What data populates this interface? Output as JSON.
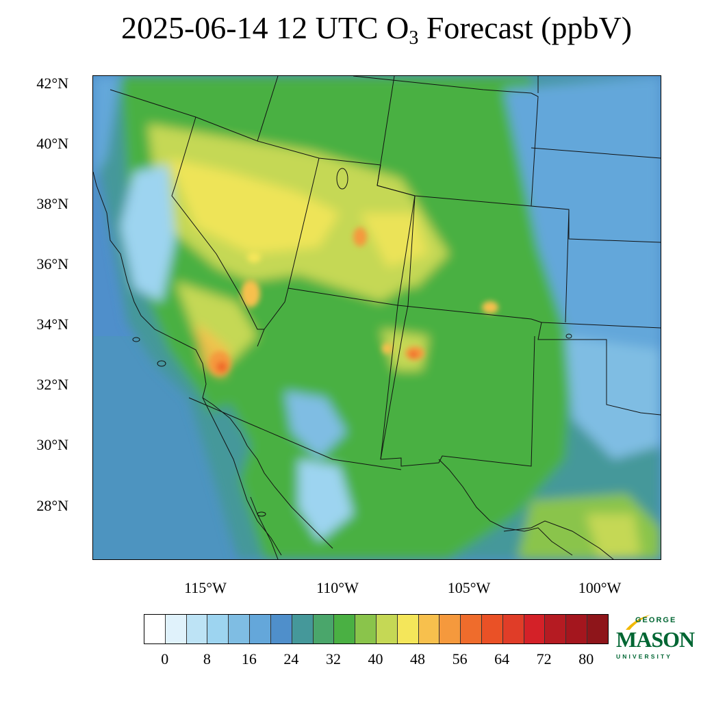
{
  "title": {
    "main": "2025-06-14 12 UTC O",
    "subscript": "3",
    "suffix": " Forecast (ppbV)"
  },
  "map": {
    "lat_labels": [
      "42°N",
      "40°N",
      "38°N",
      "36°N",
      "34°N",
      "32°N",
      "30°N",
      "28°N"
    ],
    "lon_labels": [
      "115°W",
      "110°W",
      "105°W",
      "100°W"
    ]
  },
  "colorbar": {
    "colors": [
      "#ffffff",
      "#e0f2fb",
      "#bde3f5",
      "#9dd4f0",
      "#7fbde3",
      "#64a7da",
      "#4f8fcb",
      "#45989a",
      "#4aa66b",
      "#4ab043",
      "#8ac44b",
      "#c5d855",
      "#f4e65a",
      "#f7c04d",
      "#f5993d",
      "#ef6c2c",
      "#ea5126",
      "#e03d28",
      "#d42128",
      "#b51b22",
      "#a4161e",
      "#8e151a"
    ],
    "labels": [
      "0",
      "8",
      "16",
      "24",
      "32",
      "40",
      "48",
      "56",
      "64",
      "72",
      "80"
    ]
  },
  "logo": {
    "line1": "GEORGE",
    "line2": "MASON",
    "line3": "UNIVERSITY",
    "brand_color": "#006633",
    "accent_color": "#f2b800"
  }
}
